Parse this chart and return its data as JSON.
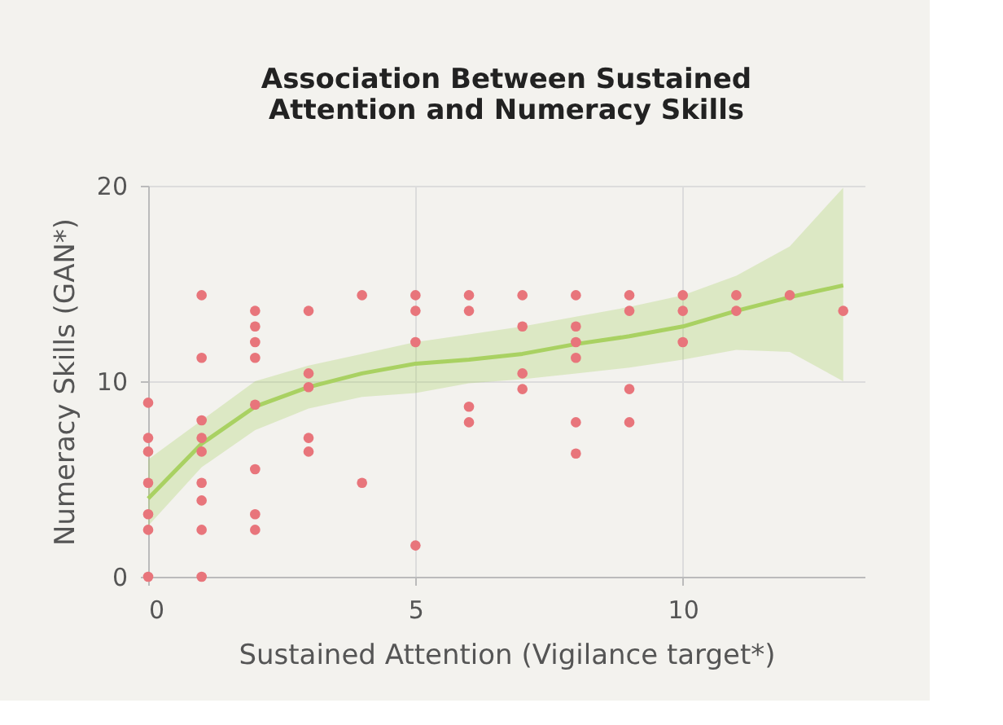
{
  "chart_data": {
    "type": "scatter",
    "title": [
      "Association Between Sustained",
      "Attention and Numeracy Skills"
    ],
    "xlabel": "Sustained Attention (Vigilance target*)",
    "ylabel": "Numeracy Skills (GAN*)",
    "xlim": [
      0,
      13.4
    ],
    "ylim": [
      0,
      20
    ],
    "xticks": [
      0,
      5,
      10
    ],
    "yticks": [
      0,
      10,
      20
    ],
    "grid": true,
    "series": [
      {
        "color": "#e8757b",
        "marker": "circle",
        "x": [
          0,
          0,
          0,
          0,
          0,
          0,
          0,
          1,
          1,
          1,
          1,
          1,
          1,
          1,
          1,
          1,
          2,
          2,
          2,
          2,
          2,
          2,
          2,
          2,
          3,
          3,
          3,
          3,
          3,
          4,
          4,
          5,
          5,
          5,
          5,
          6,
          6,
          6,
          6,
          7,
          7,
          7,
          7,
          8,
          8,
          8,
          8,
          8,
          8,
          9,
          9,
          9,
          9,
          10,
          10,
          10,
          11,
          11,
          12,
          13
        ],
        "values": [
          8.9,
          7.1,
          6.4,
          4.8,
          3.2,
          2.4,
          0,
          14.4,
          11.2,
          8.0,
          7.1,
          6.4,
          4.8,
          3.9,
          2.4,
          0,
          13.6,
          12.8,
          12.0,
          11.2,
          8.8,
          5.5,
          3.2,
          2.4,
          13.6,
          10.4,
          9.7,
          7.1,
          6.4,
          14.4,
          4.8,
          14.4,
          13.6,
          12.0,
          1.6,
          14.4,
          13.6,
          8.7,
          7.9,
          14.4,
          12.8,
          10.4,
          9.6,
          14.4,
          12.8,
          12.0,
          11.2,
          7.9,
          6.3,
          14.4,
          13.6,
          9.6,
          7.9,
          14.4,
          13.6,
          12.0,
          14.4,
          13.6,
          14.4,
          13.6
        ]
      },
      {
        "type": "line",
        "color": "#a9d162",
        "line_style": "solid",
        "marker": "none",
        "x": [
          0,
          1,
          2,
          3,
          4,
          5,
          6,
          7,
          8,
          9,
          10,
          11,
          12,
          13
        ],
        "values": [
          4.0,
          6.8,
          8.7,
          9.7,
          10.4,
          10.9,
          11.1,
          11.4,
          11.9,
          12.3,
          12.8,
          13.6,
          14.3,
          14.9
        ],
        "lower": [
          2.6,
          5.6,
          7.5,
          8.6,
          9.2,
          9.4,
          9.9,
          10.1,
          10.4,
          10.7,
          11.1,
          11.6,
          11.5,
          10.0
        ],
        "upper": [
          6.0,
          8.0,
          10.0,
          10.8,
          11.4,
          12.0,
          12.4,
          12.8,
          13.3,
          13.8,
          14.4,
          15.4,
          16.9,
          19.9
        ]
      }
    ]
  }
}
